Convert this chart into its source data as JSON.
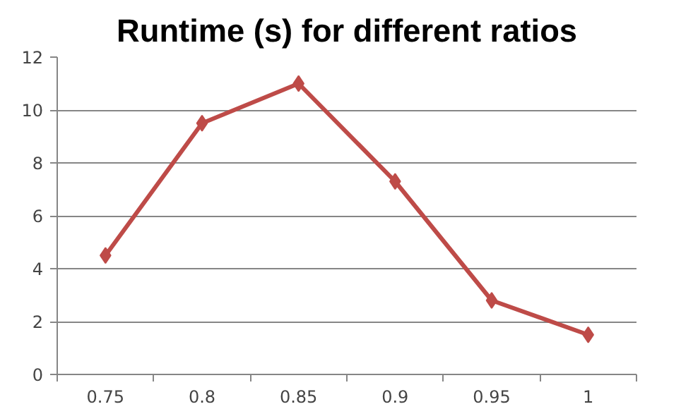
{
  "chart_data": {
    "type": "line",
    "title": "Runtime (s) for different ratios",
    "categories": [
      "0.75",
      "0.8",
      "0.85",
      "0.9",
      "0.95",
      "1"
    ],
    "series": [
      {
        "color": "#be4b48",
        "values": [
          4.5,
          9.5,
          11,
          7.3,
          2.8,
          1.5
        ]
      }
    ],
    "ylim": [
      0,
      12
    ],
    "yticks": [
      0,
      2,
      4,
      6,
      8,
      10,
      12
    ],
    "grid": "y",
    "marker": "diamond",
    "line_style": "solid"
  }
}
